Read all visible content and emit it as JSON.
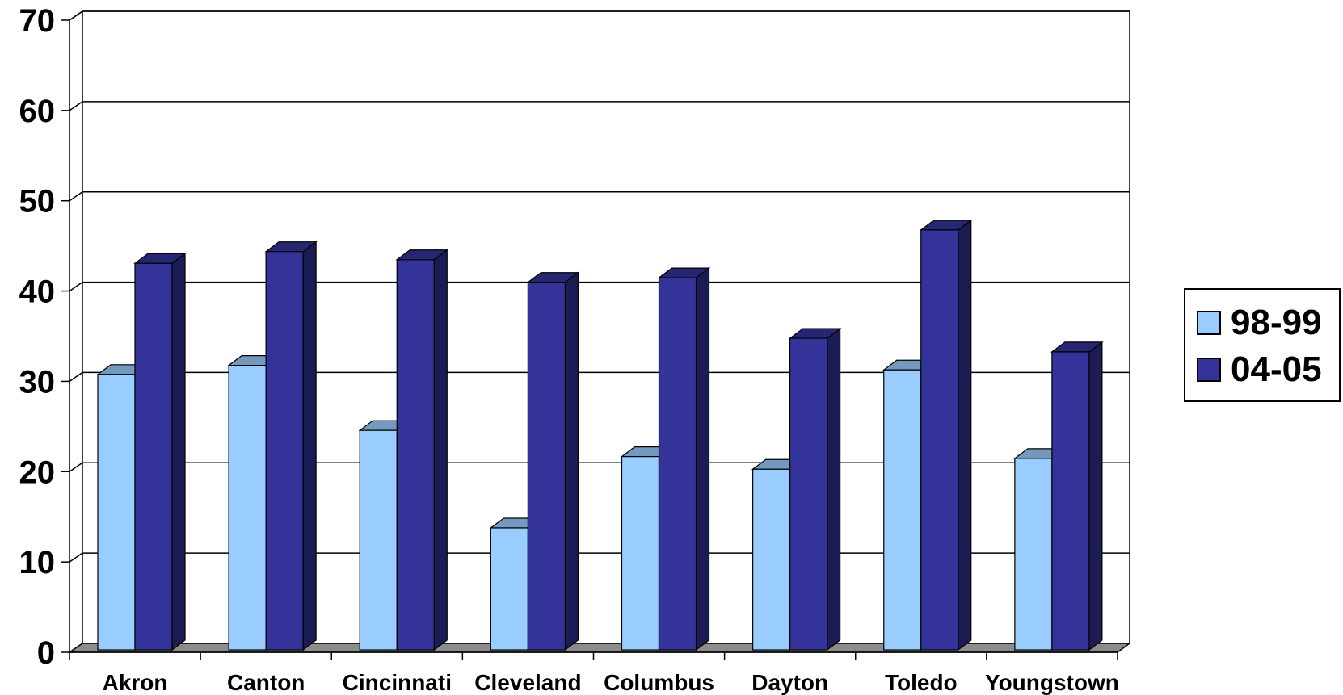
{
  "chart_data": {
    "type": "bar",
    "categories": [
      "Akron",
      "Canton",
      "Cincinnati",
      "Cleveland",
      "Columbus",
      "Dayton",
      "Toledo",
      "Youngstown"
    ],
    "series": [
      {
        "name": "98-99",
        "color": "#99ccff",
        "values": [
          30.5,
          31.5,
          24.3,
          13.5,
          21.4,
          20.0,
          31.0,
          21.2
        ]
      },
      {
        "name": "04-05",
        "color": "#333399",
        "values": [
          42.8,
          44.1,
          43.2,
          40.7,
          41.2,
          34.5,
          46.5,
          33.0
        ]
      }
    ],
    "yticks": [
      "0",
      "10",
      "20",
      "30",
      "40",
      "50",
      "60",
      "70"
    ],
    "ylim": [
      0,
      70
    ],
    "grid": true,
    "legend_position": "right",
    "style": "3d-clustered-column"
  }
}
